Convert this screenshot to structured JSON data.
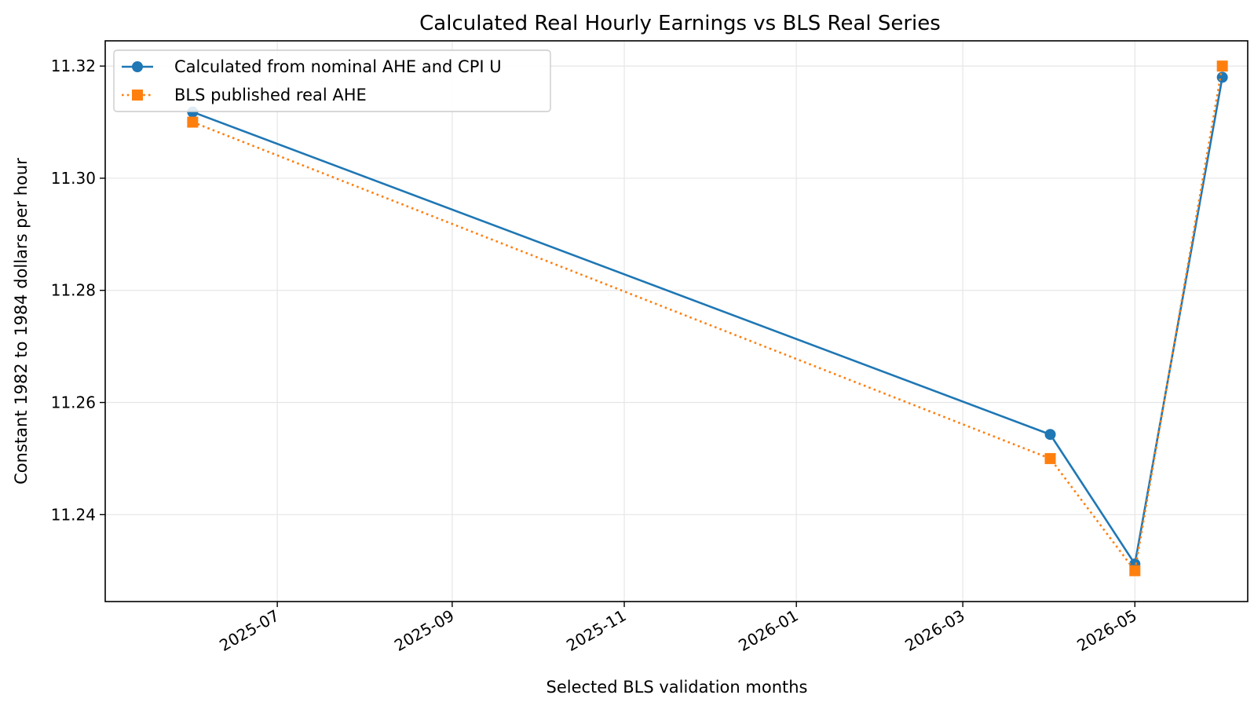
{
  "chart_data": {
    "type": "line",
    "title": "Calculated Real Hourly Earnings vs BLS Real Series",
    "xlabel": "Selected BLS validation months",
    "ylabel": "Constant 1982 to 1984 dollars per hour",
    "x_axis_type": "date",
    "xlim": [
      "2025-05-01",
      "2026-06-10"
    ],
    "ylim": [
      11.2245,
      11.3245
    ],
    "x_ticks": [
      "2025-07",
      "2025-09",
      "2025-11",
      "2026-01",
      "2026-03",
      "2026-05"
    ],
    "y_ticks": [
      "11.24",
      "11.26",
      "11.28",
      "11.30",
      "11.32"
    ],
    "grid": true,
    "legend_position": "top-left",
    "series": [
      {
        "name": "Calculated from nominal AHE and CPI U",
        "color": "#1f77b4",
        "line_style": "solid",
        "marker": "circle",
        "x": [
          "2025-06-01",
          "2026-04-01",
          "2026-05-01",
          "2026-06-01"
        ],
        "y": [
          11.3118,
          11.2543,
          11.2312,
          11.318
        ]
      },
      {
        "name": "BLS published real AHE",
        "color": "#ff7f0e",
        "line_style": "dotted",
        "marker": "square",
        "x": [
          "2025-06-01",
          "2026-04-01",
          "2026-05-01",
          "2026-06-01"
        ],
        "y": [
          11.31,
          11.25,
          11.23,
          11.32
        ]
      }
    ]
  }
}
